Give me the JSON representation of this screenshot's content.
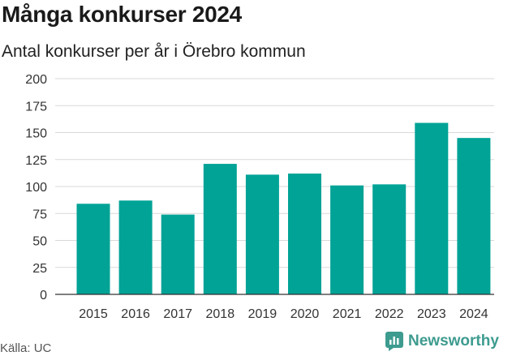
{
  "chart_data": {
    "type": "bar",
    "title": "Många konkurser 2024",
    "subtitle": "Antal konkurser per år i Örebro kommun",
    "categories": [
      "2015",
      "2016",
      "2017",
      "2018",
      "2019",
      "2020",
      "2021",
      "2022",
      "2023",
      "2024"
    ],
    "values": [
      84,
      87,
      74,
      121,
      111,
      112,
      101,
      102,
      159,
      145
    ],
    "ylim": [
      0,
      200
    ],
    "yticks": [
      0,
      25,
      50,
      75,
      100,
      125,
      150,
      175,
      200
    ],
    "xlabel": "",
    "ylabel": "",
    "grid": true,
    "bar_color": "#00a396"
  },
  "footer": {
    "source": "Källa: UC",
    "brand": "Newsworthy",
    "brand_color": "#3e9b8f"
  }
}
